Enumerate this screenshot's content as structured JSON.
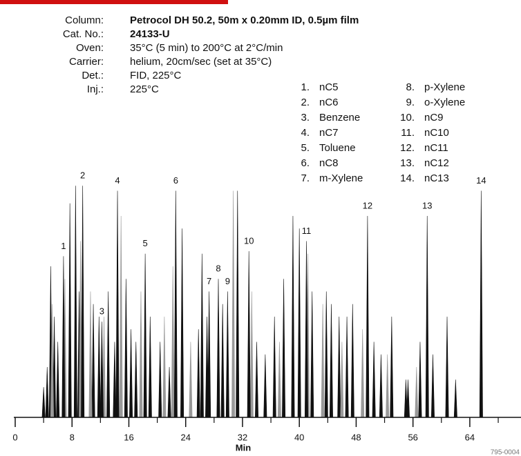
{
  "chart_data": {
    "type": "chromatogram",
    "info": [
      {
        "label": "Column:",
        "value": "Petrocol DH 50.2, 50m x 0.20mm ID, 0.5µm film"
      },
      {
        "label": "Cat. No.:",
        "value": "24133-U"
      },
      {
        "label": "Oven:",
        "value": "35°C (5 min) to 200°C at 2°C/min"
      },
      {
        "label": "Carrier:",
        "value": "helium, 20cm/sec (set at 35°C)"
      },
      {
        "label": "Det.:",
        "value": "FID, 225°C"
      },
      {
        "label": "Inj.:",
        "value": "225°C"
      }
    ],
    "compounds": [
      {
        "number": "1.",
        "name": "nC5"
      },
      {
        "number": "2.",
        "name": "nC6"
      },
      {
        "number": "3.",
        "name": "Benzene"
      },
      {
        "number": "4.",
        "name": "nC7"
      },
      {
        "number": "5.",
        "name": "Toluene"
      },
      {
        "number": "6.",
        "name": "nC8"
      },
      {
        "number": "7.",
        "name": "m-Xylene"
      },
      {
        "number": "8.",
        "name": "p-Xylene"
      },
      {
        "number": "9.",
        "name": "o-Xylene"
      },
      {
        "number": "10.",
        "name": "nC9"
      },
      {
        "number": "11.",
        "name": "nC10"
      },
      {
        "number": "12.",
        "name": "nC11"
      },
      {
        "number": "13.",
        "name": "nC12"
      },
      {
        "number": "14.",
        "name": "nC13"
      }
    ],
    "peaks": [
      {
        "label": "1",
        "x": 6.8,
        "value": 64
      },
      {
        "label": "2",
        "x": 9.5,
        "value": 92
      },
      {
        "label": "3",
        "x": 12.2,
        "value": 38
      },
      {
        "label": "4",
        "x": 14.4,
        "value": 90
      },
      {
        "label": "5",
        "x": 18.3,
        "value": 65
      },
      {
        "label": "6",
        "x": 22.6,
        "value": 90
      },
      {
        "label": "7",
        "x": 27.3,
        "value": 50
      },
      {
        "label": "8",
        "x": 28.6,
        "value": 55
      },
      {
        "label": "9",
        "x": 29.9,
        "value": 50
      },
      {
        "label": "10",
        "x": 32.9,
        "value": 66
      },
      {
        "label": "11",
        "x": 41.0,
        "value": 70
      },
      {
        "label": "12",
        "x": 49.6,
        "value": 80
      },
      {
        "label": "13",
        "x": 58.0,
        "value": 80
      },
      {
        "label": "14",
        "x": 65.6,
        "value": 90
      }
    ],
    "peak_color": "#111111",
    "series": [
      {
        "color": "#111111",
        "x": [
          4.0,
          4.5,
          5.0,
          5.5,
          6.0,
          7.7,
          8.5,
          9.0,
          11.0,
          11.8,
          13.1,
          14.0,
          15.6,
          16.3,
          17.0,
          19.0,
          20.4,
          21.7,
          23.5,
          25.8,
          26.3,
          27.0,
          29.2,
          31.3,
          34.0,
          35.2,
          36.5,
          37.8,
          39.1,
          40.0,
          41.8,
          43.8,
          44.5,
          45.6,
          46.7,
          47.5,
          50.5,
          51.5,
          53.0,
          55.0,
          55.3,
          57.0,
          58.8,
          60.8,
          62.0
        ],
        "values": [
          12,
          20,
          60,
          40,
          30,
          85,
          92,
          50,
          45,
          40,
          50,
          30,
          55,
          35,
          30,
          40,
          30,
          20,
          75,
          35,
          65,
          40,
          45,
          90,
          30,
          25,
          40,
          55,
          80,
          75,
          50,
          50,
          45,
          40,
          40,
          45,
          30,
          25,
          40,
          15,
          15,
          30,
          25,
          40,
          15
        ]
      },
      {
        "color": "#999999",
        "x": [
          5.2,
          7.0,
          9.2,
          10.6,
          12.5,
          14.9,
          17.7,
          21.0,
          22.2,
          24.7,
          30.7,
          33.3,
          37.2,
          41.2,
          43.3,
          46.0,
          48.9,
          52.4,
          56.5
        ],
        "values": [
          45,
          55,
          70,
          50,
          40,
          80,
          50,
          40,
          60,
          30,
          90,
          50,
          30,
          65,
          45,
          30,
          35,
          25,
          20
        ]
      }
    ],
    "xlabel": "Min",
    "xlim": [
      0,
      71.5
    ],
    "ylim": [
      0,
      100
    ],
    "xticks": [
      0,
      8,
      16,
      24,
      32,
      40,
      48,
      56,
      64
    ],
    "xminor_ticks": [
      4,
      12,
      20,
      28,
      36,
      44,
      52,
      60,
      68
    ],
    "footnote": "795-0004"
  }
}
